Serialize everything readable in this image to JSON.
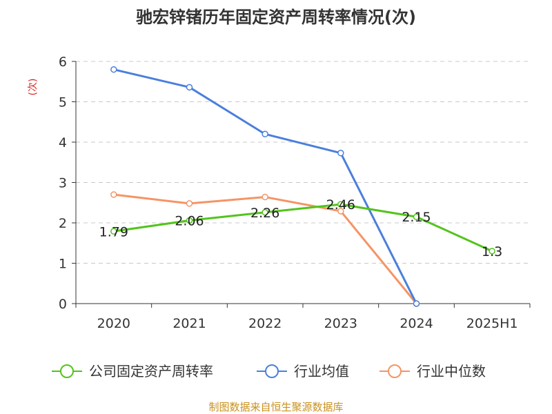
{
  "chart_data": {
    "type": "line",
    "title": "驰宏锌锗历年固定资产周转率情况(次)",
    "ylabel": "(次)",
    "xlabel": "",
    "categories": [
      "2020",
      "2021",
      "2022",
      "2023",
      "2024",
      "2025H1"
    ],
    "ylim": [
      0,
      6
    ],
    "yticks": [
      0,
      1,
      2,
      3,
      4,
      5,
      6
    ],
    "grid": true,
    "legend_position": "bottom",
    "series": [
      {
        "name": "公司固定资产周转率",
        "color": "#52c41a",
        "values": [
          1.79,
          2.06,
          2.26,
          2.46,
          2.15,
          1.3
        ],
        "labels": [
          "1.79",
          "2.06",
          "2.26",
          "2.46",
          "2.15",
          "1.3"
        ]
      },
      {
        "name": "行业均值",
        "color": "#4a7fdc",
        "values": [
          5.8,
          5.36,
          4.2,
          3.73,
          0,
          null
        ]
      },
      {
        "name": "行业中位数",
        "color": "#f59464",
        "values": [
          2.7,
          2.48,
          2.64,
          2.29,
          0,
          null
        ]
      }
    ]
  },
  "source": "制图数据来自恒生聚源数据库"
}
